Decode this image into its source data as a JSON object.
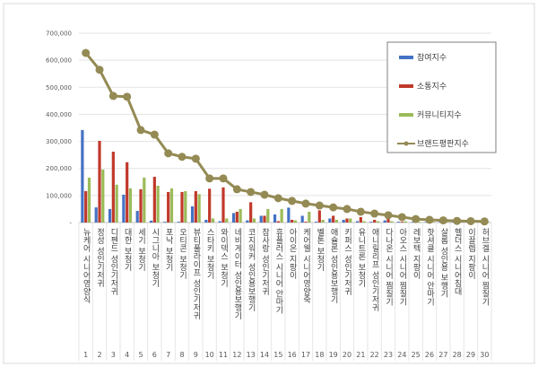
{
  "colors": {
    "s1": "#4472c4",
    "s2": "#c0392b",
    "s3": "#9bbb59",
    "s4": "#948a54"
  },
  "chart_data": {
    "type": "bar",
    "title": "",
    "xlabel": "",
    "ylabel": "",
    "ylim": [
      0,
      700000
    ],
    "yticks": [
      0,
      100000,
      200000,
      300000,
      400000,
      500000,
      600000,
      700000
    ],
    "ytick_labels": [
      "-",
      "100,000",
      "200,000",
      "300,000",
      "400,000",
      "500,000",
      "600,000",
      "700,000"
    ],
    "grid": true,
    "legend_position": "top-right",
    "numbers": [
      "1",
      "2",
      "3",
      "4",
      "5",
      "6",
      "7",
      "8",
      "9",
      "10",
      "11",
      "12",
      "13",
      "14",
      "15",
      "16",
      "17",
      "18",
      "19",
      "20",
      "21",
      "22",
      "23",
      "24",
      "25",
      "26",
      "27",
      "28",
      "29",
      "30"
    ],
    "categories": [
      "뉴케어 시니어영양식",
      "정성 성인기저귀",
      "디펜드 성인기저귀",
      "대한 보청기",
      "세기 보청기",
      "시그니아 보청기",
      "포낙 보청기",
      "오티콘 보청기",
      "뷰티풀라이프 성인기저귀",
      "스타키 보청기",
      "와이덱스 보청기",
      "네비게이터 성인용보행기",
      "코지워커 성인용보행기",
      "참사랑 성인기저귀",
      "휴플러스 시니어 안마기",
      "아이온 지팡이",
      "케어웰 시니어영양죽",
      "벨톤 보청기",
      "애슐론 성인용보행기",
      "키퍼스 성인기저귀",
      "유니트론 보청기",
      "애니릴리프 성인기저귀",
      "다나온 시니어 찜질기",
      "아오스 시니어 찜질기",
      "레보텍 지팡이",
      "핫셔클 시니어 안마기",
      "살롬 성인용 보행기",
      "헬더스 시니어침대",
      "이끌렙 지팡이",
      "허브겔 시니어 찜질기"
    ],
    "series": [
      {
        "name": "참여지수",
        "type": "bar",
        "values": [
          342000,
          56000,
          50000,
          103000,
          43000,
          7000,
          3000,
          3000,
          60000,
          10000,
          5000,
          35000,
          8000,
          25000,
          30000,
          55000,
          25000,
          3000,
          15000,
          10000,
          5000,
          3000,
          8000,
          3000,
          2000,
          2000,
          2000,
          2000,
          2000,
          1000
        ]
      },
      {
        "name": "소통지수",
        "type": "bar",
        "values": [
          116000,
          302000,
          262000,
          223000,
          123000,
          169000,
          113000,
          113000,
          116000,
          125000,
          130000,
          40000,
          75000,
          25000,
          5000,
          10000,
          3000,
          45000,
          25000,
          15000,
          20000,
          10000,
          15000,
          3000,
          3000,
          5000,
          3000,
          3000,
          2000,
          2000
        ]
      },
      {
        "name": "커뮤니티지수",
        "type": "bar",
        "values": [
          166000,
          196000,
          140000,
          126000,
          166000,
          136000,
          126000,
          116000,
          105000,
          15000,
          15000,
          50000,
          15000,
          50000,
          50000,
          8000,
          40000,
          10000,
          10000,
          15000,
          5000,
          5000,
          5000,
          5000,
          3000,
          3000,
          3000,
          2000,
          2000,
          2000
        ]
      },
      {
        "name": "브랜드평판지수",
        "type": "line",
        "values": [
          627000,
          565000,
          468000,
          465000,
          342000,
          325000,
          256000,
          243000,
          236000,
          163000,
          163000,
          123000,
          113000,
          103000,
          90000,
          80000,
          70000,
          63000,
          56000,
          50000,
          40000,
          33000,
          27000,
          20000,
          13000,
          10000,
          8000,
          6000,
          5000,
          4000
        ]
      }
    ]
  }
}
